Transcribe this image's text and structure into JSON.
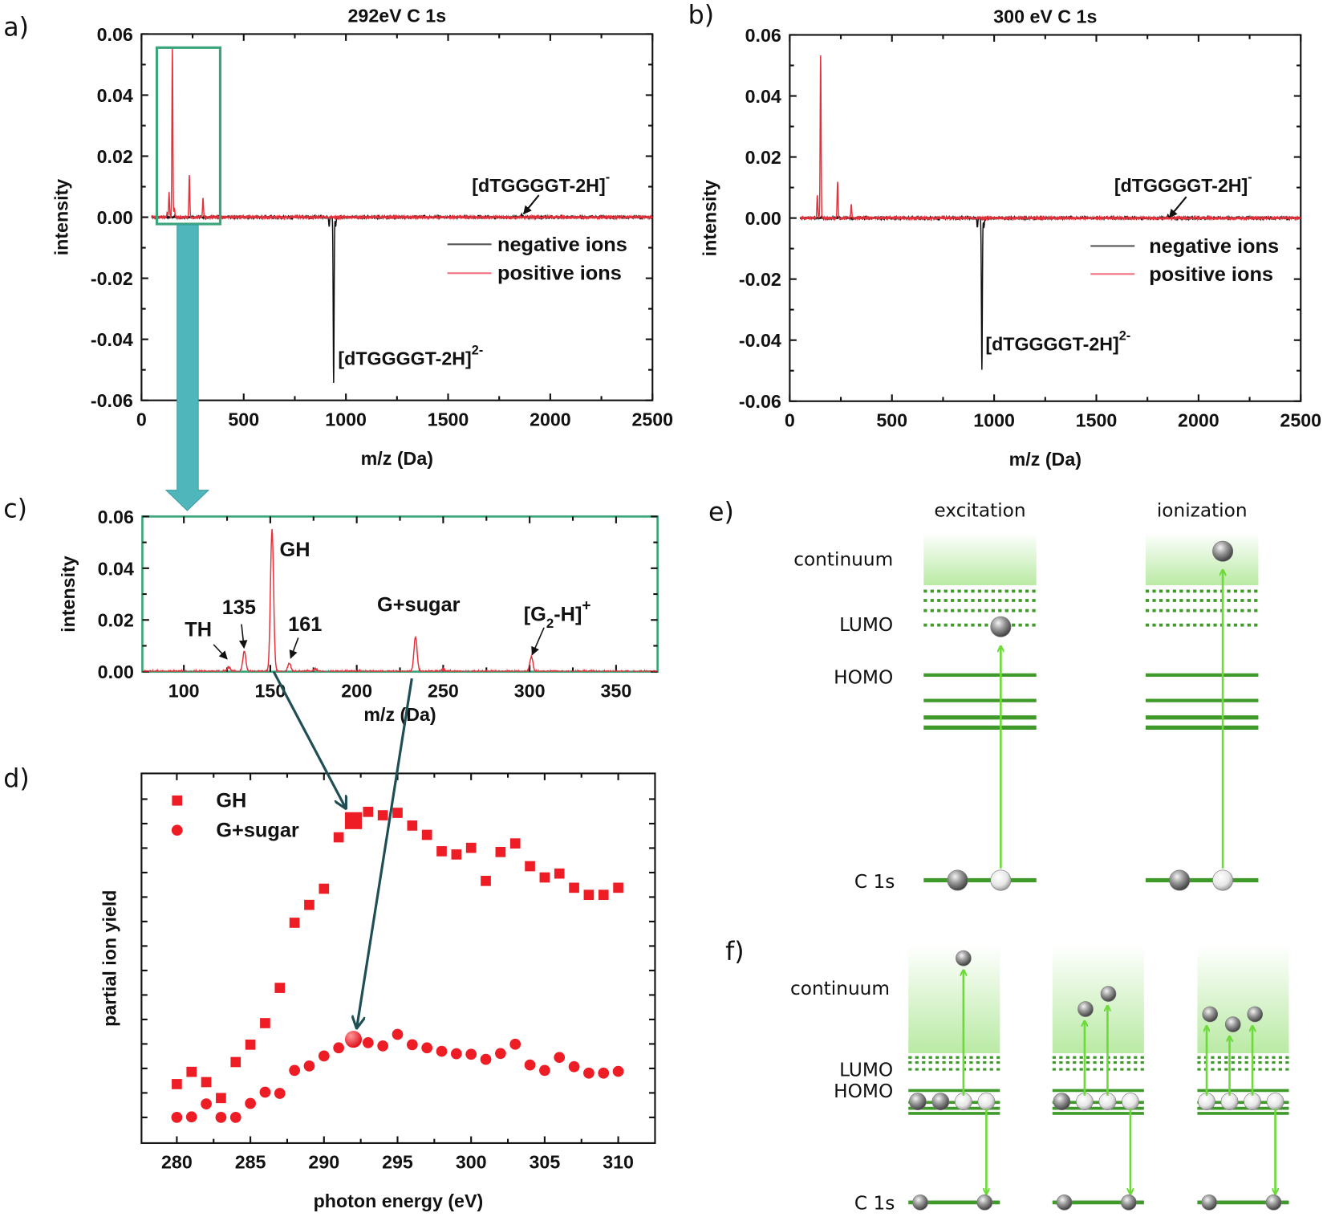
{
  "panel_letters": {
    "a": "a)",
    "b": "b)",
    "c": "c)",
    "d": "d)",
    "e": "e)",
    "f": "f)"
  },
  "chart_data": [
    {
      "id": "a",
      "type": "line",
      "title": "292eV  C 1s",
      "xlabel": "m/z (Da)",
      "ylabel": "intensity",
      "xlim": [
        0,
        2500
      ],
      "ylim": [
        -0.06,
        0.06
      ],
      "xticks": [
        "0",
        "500",
        "1000",
        "1500",
        "2000",
        "2500"
      ],
      "yticks": [
        "0.06",
        "0.04",
        "0.02",
        "0.00",
        "-0.02",
        "-0.04",
        "-0.06"
      ],
      "legend": "right",
      "series": [
        {
          "name": "negative ions",
          "color": "#111111",
          "peaks": [
            {
              "mz": 918,
              "intensity": -0.003
            },
            {
              "mz": 940,
              "intensity": -0.054
            },
            {
              "mz": 950,
              "intensity": -0.003
            },
            {
              "mz": 1860,
              "intensity": 0.0008
            }
          ]
        },
        {
          "name": "positive ions",
          "color": "#e8303a",
          "peaks": [
            {
              "mz": 126,
              "intensity": 0.0015
            },
            {
              "mz": 135,
              "intensity": 0.008
            },
            {
              "mz": 151,
              "intensity": 0.055
            },
            {
              "mz": 161,
              "intensity": 0.003
            },
            {
              "mz": 234,
              "intensity": 0.0135
            },
            {
              "mz": 301,
              "intensity": 0.006
            }
          ]
        }
      ],
      "annotations": [
        {
          "text": "[dTGGGGT-2H]",
          "sup": "-"
        },
        {
          "text": "[dTGGGGT-2H]",
          "sup": "2-"
        }
      ],
      "zoom_box_range": [
        75,
        385
      ]
    },
    {
      "id": "b",
      "type": "line",
      "title": "300 eV  C 1s",
      "xlabel": "m/z (Da)",
      "ylabel": "intensity",
      "xlim": [
        0,
        2500
      ],
      "ylim": [
        -0.06,
        0.06
      ],
      "xticks": [
        "0",
        "500",
        "1000",
        "1500",
        "2000",
        "2500"
      ],
      "yticks": [
        "0.06",
        "0.04",
        "0.02",
        "0.00",
        "-0.02",
        "-0.04",
        "-0.06"
      ],
      "legend": "right",
      "series": [
        {
          "name": "negative ions",
          "color": "#111111",
          "peaks": [
            {
              "mz": 918,
              "intensity": -0.003
            },
            {
              "mz": 940,
              "intensity": -0.05
            },
            {
              "mz": 950,
              "intensity": -0.003
            },
            {
              "mz": 1850,
              "intensity": 0.0008
            }
          ]
        },
        {
          "name": "positive ions",
          "color": "#e8303a",
          "peaks": [
            {
              "mz": 135,
              "intensity": 0.0075
            },
            {
              "mz": 151,
              "intensity": 0.053
            },
            {
              "mz": 234,
              "intensity": 0.012
            },
            {
              "mz": 301,
              "intensity": 0.0045
            }
          ]
        }
      ],
      "annotations": [
        {
          "text": "[dTGGGGT-2H]",
          "sup": "-"
        },
        {
          "text": "[dTGGGGT-2H]",
          "sup": "2-"
        }
      ]
    },
    {
      "id": "c",
      "type": "line",
      "xlabel": "m/z (Da)",
      "ylabel": "intensity",
      "xlim": [
        76,
        374
      ],
      "ylim": [
        0,
        0.06
      ],
      "xticks": [
        "100",
        "150",
        "200",
        "250",
        "300",
        "350"
      ],
      "yticks": [
        "0.06",
        "0.04",
        "0.02",
        "0.00"
      ],
      "series": [
        {
          "name": "positive ions",
          "color": "#e8303a",
          "peaks": [
            {
              "mz": 126,
              "intensity": 0.0018
            },
            {
              "mz": 135,
              "intensity": 0.008
            },
            {
              "mz": 151,
              "intensity": 0.055
            },
            {
              "mz": 161,
              "intensity": 0.003
            },
            {
              "mz": 176,
              "intensity": 0.001
            },
            {
              "mz": 234,
              "intensity": 0.0135
            },
            {
              "mz": 250,
              "intensity": 0.0008
            },
            {
              "mz": 301,
              "intensity": 0.006
            }
          ]
        }
      ],
      "annotations": [
        {
          "text": "GH"
        },
        {
          "text": "135"
        },
        {
          "text": "TH"
        },
        {
          "text": "161"
        },
        {
          "text": "G+sugar"
        },
        {
          "text": "[G",
          "sub": "2",
          "text2": "-H]",
          "sup": "+"
        }
      ]
    },
    {
      "id": "d",
      "type": "scatter",
      "xlabel": "photon energy (eV)",
      "ylabel": "partial ion yield",
      "xlim": [
        277.6,
        312.5
      ],
      "ylim": [
        -1.05,
        14.05
      ],
      "xticks": [
        "280",
        "285",
        "290",
        "295",
        "300",
        "305",
        "310"
      ],
      "yticks_labeled": false,
      "legend": "top-left",
      "x": [
        280,
        281,
        282,
        283,
        284,
        285,
        286,
        287,
        288,
        289,
        290,
        291,
        292,
        293,
        294,
        295,
        296,
        297,
        298,
        299,
        300,
        301,
        302,
        303,
        304,
        305,
        306,
        307,
        308,
        309,
        310
      ],
      "series": [
        {
          "name": "GH",
          "marker": "square",
          "color": "#ee1c25",
          "values": [
            1.36,
            1.86,
            1.44,
            0.79,
            2.26,
            2.97,
            3.85,
            5.29,
            7.95,
            8.68,
            9.34,
            11.44,
            12.12,
            12.48,
            12.34,
            12.44,
            11.92,
            11.54,
            10.87,
            10.74,
            11.01,
            9.66,
            10.84,
            11.19,
            10.26,
            9.8,
            9.96,
            9.38,
            9.09,
            9.09,
            9.38
          ]
        },
        {
          "name": "G+sugar",
          "marker": "circle",
          "color": "#ee1c25",
          "values": [
            0,
            0.02,
            0.55,
            0,
            0,
            0.57,
            1.03,
            0.98,
            1.92,
            2.1,
            2.51,
            2.84,
            3.19,
            3.05,
            2.92,
            3.39,
            2.97,
            2.84,
            2.7,
            2.6,
            2.58,
            2.37,
            2.61,
            2.99,
            2.14,
            1.92,
            2.45,
            2.07,
            1.81,
            1.81,
            1.88
          ]
        }
      ],
      "highlighted_x": 292
    }
  ],
  "diagrams": {
    "e": {
      "columns": [
        "excitation",
        "ionization"
      ],
      "levels": {
        "continuum": "continuum",
        "lumo": "LUMO",
        "homo": "HOMO",
        "core": "C 1s"
      },
      "colors": {
        "level": "#3f9a2a",
        "arrow": "#6cdb3a",
        "continuum": "#b9eaa4"
      }
    },
    "f": {
      "levels": {
        "continuum": "continuum",
        "lumo": "LUMO",
        "homo": "HOMO",
        "core": "C 1s"
      },
      "emitted_electrons": [
        1,
        2,
        3
      ]
    }
  },
  "colors": {
    "zoom_box": "#3aa57a",
    "zoom_arrow": "#4fb6bb",
    "link_arrow": "#1f4f55"
  }
}
